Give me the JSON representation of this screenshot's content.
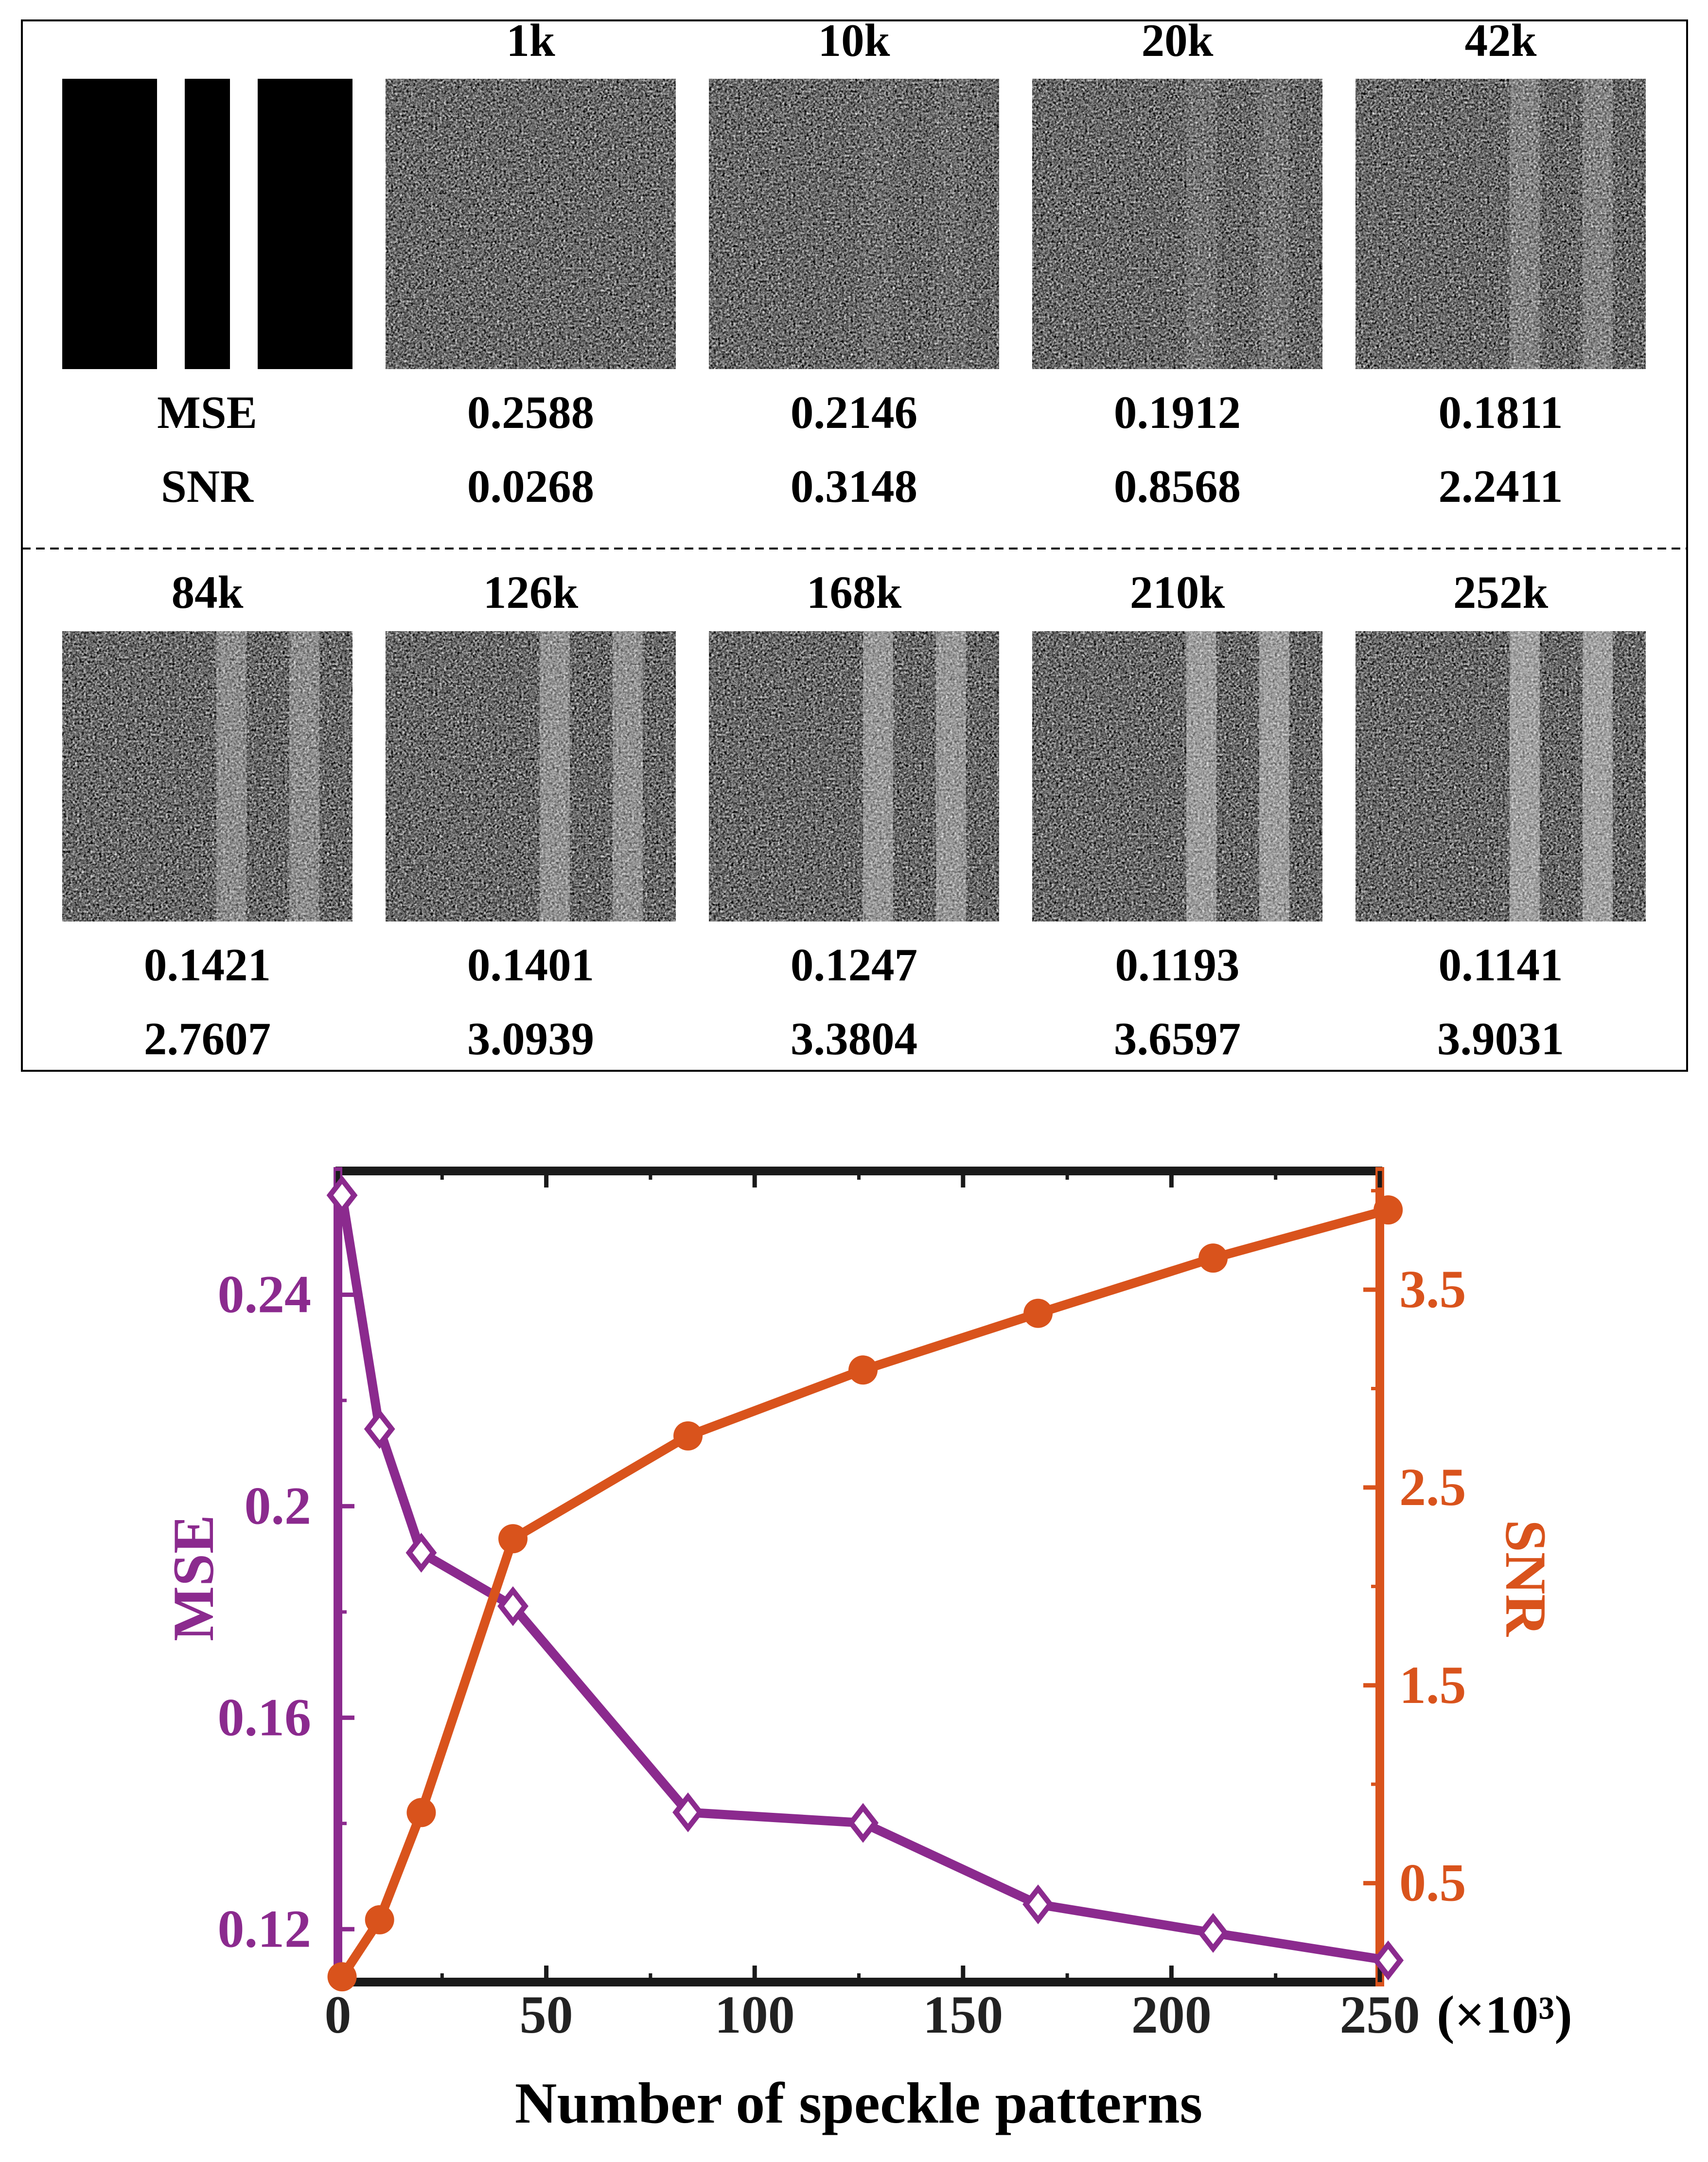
{
  "panel": {
    "row_labels": {
      "mse": "MSE",
      "snr": "SNR"
    },
    "ground_truth_icon": "triple-bar-target-icon",
    "tiles": [
      {
        "label": "1k",
        "mse": "0.2588",
        "snr": "0.0268",
        "stripe_visibility": 0.0
      },
      {
        "label": "10k",
        "mse": "0.2146",
        "snr": "0.3148",
        "stripe_visibility": 0.08
      },
      {
        "label": "20k",
        "mse": "0.1912",
        "snr": "0.8568",
        "stripe_visibility": 0.18
      },
      {
        "label": "42k",
        "mse": "0.1811",
        "snr": "2.2411",
        "stripe_visibility": 0.4
      },
      {
        "label": "84k",
        "mse": "0.1421",
        "snr": "2.7607",
        "stripe_visibility": 0.55
      },
      {
        "label": "126k",
        "mse": "0.1401",
        "snr": "3.0939",
        "stripe_visibility": 0.62
      },
      {
        "label": "168k",
        "mse": "0.1247",
        "snr": "3.3804",
        "stripe_visibility": 0.7
      },
      {
        "label": "210k",
        "mse": "0.1193",
        "snr": "3.6597",
        "stripe_visibility": 0.76
      },
      {
        "label": "252k",
        "mse": "0.1141",
        "snr": "3.9031",
        "stripe_visibility": 0.82
      }
    ]
  },
  "chart_data": {
    "type": "line",
    "xlabel": "Number of speckle patterns",
    "x_unit": "(×10³)",
    "xlim": [
      0,
      250
    ],
    "x_ticks": [
      0,
      50,
      100,
      150,
      200,
      250
    ],
    "x": [
      1,
      10,
      20,
      42,
      84,
      126,
      168,
      210,
      252
    ],
    "left_axis": {
      "label": "MSE",
      "color": "#8b2a8e",
      "ylim": [
        0.11,
        0.2634
      ],
      "ticks": [
        0.12,
        0.16,
        0.2,
        0.24
      ],
      "tick_labels": [
        "0.12",
        "0.16",
        "0.2",
        "0.24"
      ]
    },
    "right_axis": {
      "label": "SNR",
      "color": "#d9531c",
      "ylim": [
        0,
        4.1
      ],
      "ticks": [
        0.5,
        1.5,
        2.5,
        3.5
      ],
      "tick_labels": [
        "0.5",
        "1.5",
        "2.5",
        "3.5"
      ]
    },
    "series": [
      {
        "name": "MSE",
        "axis": "left",
        "marker": "diamond",
        "color": "#8b2a8e",
        "values": [
          0.2588,
          0.2146,
          0.1912,
          0.1811,
          0.1421,
          0.1401,
          0.1247,
          0.1193,
          0.1141
        ]
      },
      {
        "name": "SNR",
        "axis": "right",
        "marker": "circle",
        "color": "#d9531c",
        "values": [
          0.0268,
          0.3148,
          0.8568,
          2.2411,
          2.7607,
          3.0939,
          3.3804,
          3.6597,
          3.9031
        ]
      }
    ],
    "grid": false,
    "legend": "none"
  }
}
